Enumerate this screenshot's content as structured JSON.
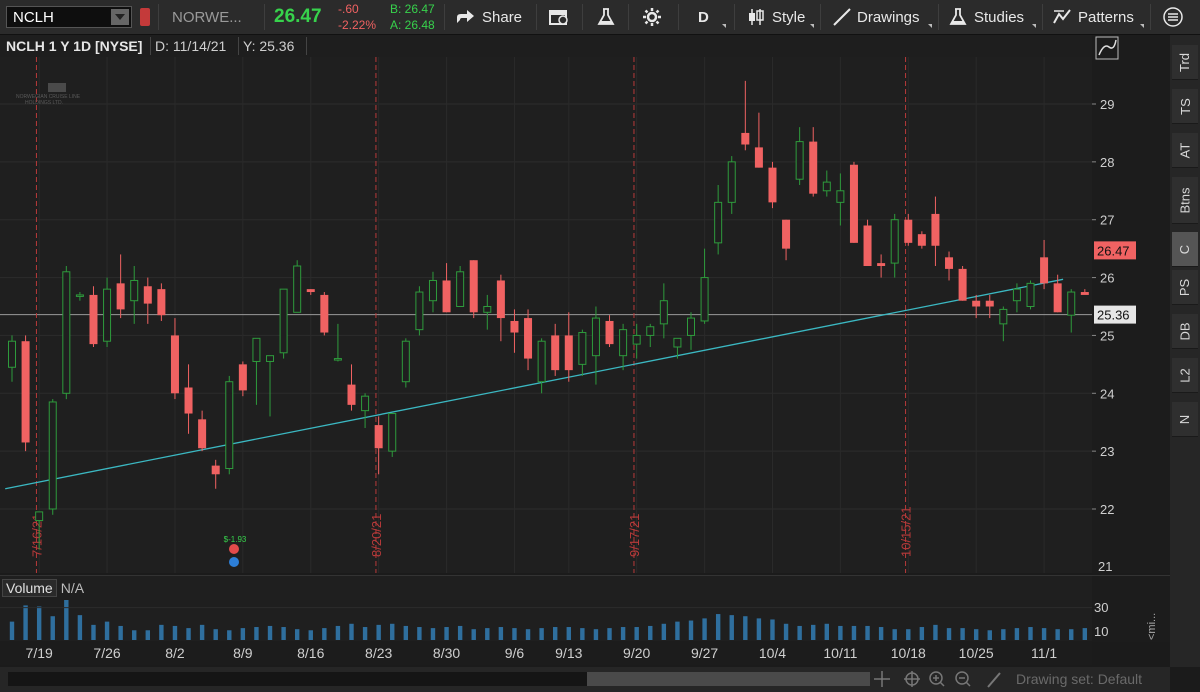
{
  "toolbar": {
    "symbol": "NCLH",
    "company": "NORWE...",
    "last": "26.47",
    "change": "-.60",
    "change_pct": "-2.22%",
    "bid": "B: 26.47",
    "ask": "A: 26.48",
    "share_label": "Share",
    "period_label": "D",
    "style_label": "Style",
    "drawings_label": "Drawings",
    "studies_label": "Studies",
    "patterns_label": "Patterns"
  },
  "subheader": {
    "title": "NCLH 1 Y 1D [NYSE]",
    "date": "D: 11/14/21",
    "y": "Y: 25.36"
  },
  "watermark": {
    "line1": "NORWEGIAN CRUISE LINE",
    "line2": "HOLDINGS LTD."
  },
  "earnings_marker": "$-1.93",
  "price_labels": {
    "last": "26.47",
    "cursor": "25.36",
    "axis_21": "21"
  },
  "volume": {
    "label": "Volume",
    "value": "N/A",
    "axis_ticks": [
      "30",
      "10"
    ],
    "collapse_label": "<mi..."
  },
  "right_panel": [
    "Trd",
    "TS",
    "AT",
    "Btns",
    "C",
    "PS",
    "DB",
    "L2",
    "N"
  ],
  "bottom": {
    "drawing_set": "Drawing set: Default"
  },
  "colors": {
    "up": "#2e9b3c",
    "down": "#f06262",
    "trendline": "#3bb8c2",
    "last_badge": "#f06262",
    "accent_green": "#37d24c",
    "accent_red": "#f06262"
  },
  "chart_data": {
    "type": "candlestick",
    "ylim": [
      21,
      29.8
    ],
    "y_ticks": [
      22,
      23,
      24,
      25,
      26,
      27,
      28,
      29
    ],
    "x_tick_labels": [
      {
        "label": "7/19",
        "i": 2
      },
      {
        "label": "7/26",
        "i": 7
      },
      {
        "label": "8/2",
        "i": 12
      },
      {
        "label": "8/9",
        "i": 17
      },
      {
        "label": "8/16",
        "i": 22
      },
      {
        "label": "8/23",
        "i": 27
      },
      {
        "label": "8/30",
        "i": 32
      },
      {
        "label": "9/6",
        "i": 37
      },
      {
        "label": "9/13",
        "i": 41
      },
      {
        "label": "9/20",
        "i": 46
      },
      {
        "label": "9/27",
        "i": 51
      },
      {
        "label": "10/4",
        "i": 56
      },
      {
        "label": "10/11",
        "i": 61
      },
      {
        "label": "10/18",
        "i": 66
      },
      {
        "label": "10/25",
        "i": 71
      },
      {
        "label": "11/1",
        "i": 76
      }
    ],
    "vertical_markers": [
      {
        "label": "7/16/21",
        "i": 1.8
      },
      {
        "label": "8/20/21",
        "i": 26.8
      },
      {
        "label": "9/17/21",
        "i": 45.8
      },
      {
        "label": "10/15/21",
        "i": 65.8
      }
    ],
    "cursor_price": 25.36,
    "last_price": 26.47,
    "trendline": {
      "from": {
        "i": -0.5,
        "p": 22.35
      },
      "to": {
        "i": 77.4,
        "p": 25.97
      }
    },
    "candles": [
      {
        "o": 24.45,
        "h": 25.0,
        "l": 24.2,
        "c": 24.9
      },
      {
        "o": 24.9,
        "h": 25.0,
        "l": 23.0,
        "c": 23.15
      },
      {
        "o": 21.8,
        "h": 21.95,
        "l": 21.3,
        "c": 21.95
      },
      {
        "o": 22.0,
        "h": 23.9,
        "l": 21.9,
        "c": 23.85
      },
      {
        "o": 24.0,
        "h": 26.2,
        "l": 23.9,
        "c": 26.1
      },
      {
        "o": 25.7,
        "h": 25.75,
        "l": 25.6,
        "c": 25.7
      },
      {
        "o": 25.7,
        "h": 25.85,
        "l": 24.8,
        "c": 24.85
      },
      {
        "o": 24.9,
        "h": 26.0,
        "l": 24.8,
        "c": 25.8
      },
      {
        "o": 25.9,
        "h": 26.4,
        "l": 25.3,
        "c": 25.45
      },
      {
        "o": 25.6,
        "h": 26.2,
        "l": 25.2,
        "c": 25.95
      },
      {
        "o": 25.85,
        "h": 26.0,
        "l": 25.2,
        "c": 25.55
      },
      {
        "o": 25.8,
        "h": 25.9,
        "l": 25.25,
        "c": 25.35
      },
      {
        "o": 25.0,
        "h": 25.3,
        "l": 23.9,
        "c": 24.0
      },
      {
        "o": 24.1,
        "h": 24.5,
        "l": 23.3,
        "c": 23.65
      },
      {
        "o": 23.55,
        "h": 23.7,
        "l": 23.0,
        "c": 23.05
      },
      {
        "o": 22.75,
        "h": 22.85,
        "l": 22.35,
        "c": 22.6
      },
      {
        "o": 22.7,
        "h": 24.3,
        "l": 22.6,
        "c": 24.2
      },
      {
        "o": 24.5,
        "h": 24.55,
        "l": 23.95,
        "c": 24.05
      },
      {
        "o": 24.55,
        "h": 24.95,
        "l": 23.8,
        "c": 24.95
      },
      {
        "o": 24.55,
        "h": 24.65,
        "l": 23.6,
        "c": 24.65
      },
      {
        "o": 24.7,
        "h": 25.8,
        "l": 24.6,
        "c": 25.8
      },
      {
        "o": 25.4,
        "h": 26.3,
        "l": 25.4,
        "c": 26.2
      },
      {
        "o": 25.8,
        "h": 25.8,
        "l": 25.7,
        "c": 25.75
      },
      {
        "o": 25.7,
        "h": 25.75,
        "l": 25.0,
        "c": 25.05
      },
      {
        "o": 24.6,
        "h": 25.2,
        "l": 24.55,
        "c": 24.6
      },
      {
        "o": 24.15,
        "h": 24.5,
        "l": 23.7,
        "c": 23.8
      },
      {
        "o": 23.7,
        "h": 24.0,
        "l": 23.4,
        "c": 23.95
      },
      {
        "o": 23.45,
        "h": 23.6,
        "l": 22.6,
        "c": 23.05
      },
      {
        "o": 23.0,
        "h": 23.6,
        "l": 22.9,
        "c": 23.65
      },
      {
        "o": 24.2,
        "h": 24.95,
        "l": 24.1,
        "c": 24.9
      },
      {
        "o": 25.1,
        "h": 25.85,
        "l": 25.0,
        "c": 25.75
      },
      {
        "o": 25.6,
        "h": 26.1,
        "l": 25.4,
        "c": 25.95
      },
      {
        "o": 25.95,
        "h": 26.25,
        "l": 25.4,
        "c": 25.4
      },
      {
        "o": 25.5,
        "h": 26.2,
        "l": 25.5,
        "c": 26.1
      },
      {
        "o": 26.3,
        "h": 26.3,
        "l": 25.3,
        "c": 25.4
      },
      {
        "o": 25.4,
        "h": 25.7,
        "l": 25.1,
        "c": 25.5
      },
      {
        "o": 25.95,
        "h": 26.05,
        "l": 24.9,
        "c": 25.3
      },
      {
        "o": 25.25,
        "h": 25.45,
        "l": 24.7,
        "c": 25.05
      },
      {
        "o": 25.3,
        "h": 25.45,
        "l": 24.4,
        "c": 24.6
      },
      {
        "o": 24.2,
        "h": 24.95,
        "l": 24.0,
        "c": 24.9
      },
      {
        "o": 25.0,
        "h": 25.2,
        "l": 24.3,
        "c": 24.4
      },
      {
        "o": 25.0,
        "h": 25.4,
        "l": 24.2,
        "c": 24.4
      },
      {
        "o": 24.5,
        "h": 25.1,
        "l": 24.3,
        "c": 25.05
      },
      {
        "o": 24.65,
        "h": 25.5,
        "l": 24.15,
        "c": 25.3
      },
      {
        "o": 25.25,
        "h": 25.35,
        "l": 24.8,
        "c": 24.85
      },
      {
        "o": 24.65,
        "h": 25.2,
        "l": 24.4,
        "c": 25.1
      },
      {
        "o": 24.85,
        "h": 25.2,
        "l": 24.6,
        "c": 25.0
      },
      {
        "o": 25.0,
        "h": 25.2,
        "l": 24.8,
        "c": 25.15
      },
      {
        "o": 25.2,
        "h": 25.9,
        "l": 24.95,
        "c": 25.6
      },
      {
        "o": 24.8,
        "h": 24.95,
        "l": 24.6,
        "c": 24.95
      },
      {
        "o": 25.0,
        "h": 25.4,
        "l": 24.75,
        "c": 25.3
      },
      {
        "o": 25.25,
        "h": 26.5,
        "l": 25.2,
        "c": 26.0
      },
      {
        "o": 26.6,
        "h": 27.6,
        "l": 26.4,
        "c": 27.3
      },
      {
        "o": 27.3,
        "h": 28.1,
        "l": 27.1,
        "c": 28.0
      },
      {
        "o": 28.5,
        "h": 29.4,
        "l": 28.2,
        "c": 28.3
      },
      {
        "o": 28.25,
        "h": 28.85,
        "l": 27.9,
        "c": 27.9
      },
      {
        "o": 27.9,
        "h": 28.0,
        "l": 27.2,
        "c": 27.3
      },
      {
        "o": 27.0,
        "h": 27.0,
        "l": 26.3,
        "c": 26.5
      },
      {
        "o": 27.7,
        "h": 28.6,
        "l": 27.6,
        "c": 28.35
      },
      {
        "o": 28.35,
        "h": 28.6,
        "l": 27.4,
        "c": 27.45
      },
      {
        "o": 27.5,
        "h": 27.85,
        "l": 27.4,
        "c": 27.65
      },
      {
        "o": 27.3,
        "h": 27.8,
        "l": 26.9,
        "c": 27.5
      },
      {
        "o": 27.95,
        "h": 28.0,
        "l": 26.6,
        "c": 26.6
      },
      {
        "o": 26.9,
        "h": 27.0,
        "l": 26.2,
        "c": 26.2
      },
      {
        "o": 26.25,
        "h": 26.4,
        "l": 26.0,
        "c": 26.2
      },
      {
        "o": 26.25,
        "h": 27.1,
        "l": 26.0,
        "c": 27.0
      },
      {
        "o": 27.0,
        "h": 27.1,
        "l": 26.55,
        "c": 26.6
      },
      {
        "o": 26.75,
        "h": 26.8,
        "l": 26.5,
        "c": 26.55
      },
      {
        "o": 27.1,
        "h": 27.4,
        "l": 26.2,
        "c": 26.55
      },
      {
        "o": 26.35,
        "h": 26.45,
        "l": 25.95,
        "c": 26.15
      },
      {
        "o": 26.15,
        "h": 26.2,
        "l": 25.6,
        "c": 25.6
      },
      {
        "o": 25.6,
        "h": 25.7,
        "l": 25.3,
        "c": 25.5
      },
      {
        "o": 25.6,
        "h": 25.7,
        "l": 25.3,
        "c": 25.5
      },
      {
        "o": 25.2,
        "h": 25.5,
        "l": 24.9,
        "c": 25.45
      },
      {
        "o": 25.6,
        "h": 25.9,
        "l": 25.4,
        "c": 25.8
      },
      {
        "o": 25.5,
        "h": 25.95,
        "l": 25.45,
        "c": 25.9
      },
      {
        "o": 26.35,
        "h": 26.65,
        "l": 25.8,
        "c": 25.9
      },
      {
        "o": 25.9,
        "h": 26.05,
        "l": 25.4,
        "c": 25.4
      },
      {
        "o": 25.35,
        "h": 25.8,
        "l": 25.05,
        "c": 25.75
      },
      {
        "o": 25.75,
        "h": 25.8,
        "l": 25.75,
        "c": 25.7
      },
      {
        "o": 25.9,
        "h": 26.3,
        "l": 25.8,
        "c": 26.1
      },
      {
        "o": 26.1,
        "h": 27.1,
        "l": 25.8,
        "c": 27.05
      },
      {
        "o": 26.9,
        "h": 27.0,
        "l": 26.3,
        "c": 26.47
      }
    ],
    "volume": [
      17,
      32,
      31,
      22,
      37,
      23,
      14,
      17,
      13,
      9,
      9,
      14,
      13,
      11,
      14,
      10,
      9,
      11,
      12,
      13,
      12,
      10,
      9,
      11,
      13,
      15,
      12,
      14,
      15,
      13,
      12,
      11,
      12,
      13,
      10,
      11,
      12,
      11,
      10,
      11,
      12,
      12,
      11,
      10,
      11,
      12,
      12,
      13,
      15,
      17,
      18,
      20,
      24,
      23,
      22,
      20,
      19,
      15,
      13,
      14,
      15,
      13,
      13,
      13,
      12,
      10,
      10,
      12,
      14,
      11,
      11,
      10,
      9,
      10,
      11,
      12,
      11,
      10,
      10,
      11,
      13,
      14,
      9
    ]
  }
}
